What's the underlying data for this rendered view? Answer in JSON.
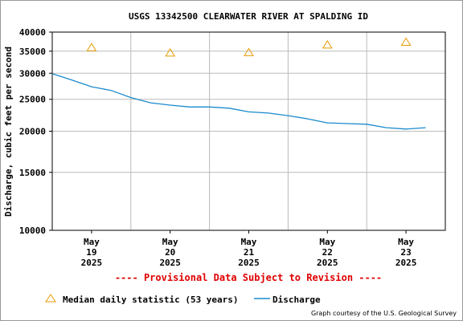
{
  "chart_data": {
    "type": "line",
    "title": "USGS 13342500 CLEARWATER RIVER AT SPALDING ID",
    "ylabel": "Discharge, cubic feet per second",
    "xlabel": "",
    "y_scale": "log",
    "ylim": [
      10000,
      40000
    ],
    "y_ticks": [
      {
        "value": 10000,
        "label": "10000"
      },
      {
        "value": 15000,
        "label": "15000"
      },
      {
        "value": 20000,
        "label": "20000"
      },
      {
        "value": 25000,
        "label": "25000"
      },
      {
        "value": 30000,
        "label": "30000"
      },
      {
        "value": 35000,
        "label": "35000"
      },
      {
        "value": 40000,
        "label": "40000"
      }
    ],
    "xlim": [
      "2025-05-18T12:00",
      "2025-05-23T12:00"
    ],
    "x_ticks": [
      {
        "value": "2025-05-19",
        "lines": [
          "May",
          "19",
          "2025"
        ]
      },
      {
        "value": "2025-05-20",
        "lines": [
          "May",
          "20",
          "2025"
        ]
      },
      {
        "value": "2025-05-21",
        "lines": [
          "May",
          "21",
          "2025"
        ]
      },
      {
        "value": "2025-05-22",
        "lines": [
          "May",
          "22",
          "2025"
        ]
      },
      {
        "value": "2025-05-23",
        "lines": [
          "May",
          "23",
          "2025"
        ]
      }
    ],
    "grid": true,
    "series": [
      {
        "name": "Median daily statistic (53 years)",
        "kind": "marker",
        "color": "#e89a00",
        "x": [
          "2025-05-19",
          "2025-05-20",
          "2025-05-21",
          "2025-05-22",
          "2025-05-23"
        ],
        "values": [
          35900,
          34600,
          34700,
          36600,
          37300
        ]
      },
      {
        "name": "Discharge",
        "kind": "line",
        "color": "#1a8acd",
        "x": [
          "2025-05-18T12:00",
          "2025-05-18T18:00",
          "2025-05-19T00:00",
          "2025-05-19T06:00",
          "2025-05-19T12:00",
          "2025-05-19T18:00",
          "2025-05-20T00:00",
          "2025-05-20T06:00",
          "2025-05-20T12:00",
          "2025-05-20T18:00",
          "2025-05-21T00:00",
          "2025-05-21T06:00",
          "2025-05-21T12:00",
          "2025-05-21T18:00",
          "2025-05-22T00:00",
          "2025-05-22T06:00",
          "2025-05-22T12:00",
          "2025-05-22T18:00",
          "2025-05-23T00:00",
          "2025-05-23T06:00"
        ],
        "values": [
          29900,
          28600,
          27300,
          26600,
          25300,
          24400,
          24000,
          23700,
          23700,
          23500,
          22900,
          22700,
          22300,
          21800,
          21200,
          21100,
          21000,
          20500,
          20300,
          20500
        ]
      }
    ]
  },
  "legend": {
    "median_label": "Median daily statistic (53 years)",
    "discharge_label": "Discharge"
  },
  "notes": {
    "provisional": "---- Provisional Data Subject to Revision ----",
    "credit": "Graph courtesy of the U.S. Geological Survey"
  },
  "colors": {
    "median": "#e89a00",
    "discharge": "#1a8acd",
    "provisional": "#e00000",
    "grid": "#bbbbbb"
  }
}
